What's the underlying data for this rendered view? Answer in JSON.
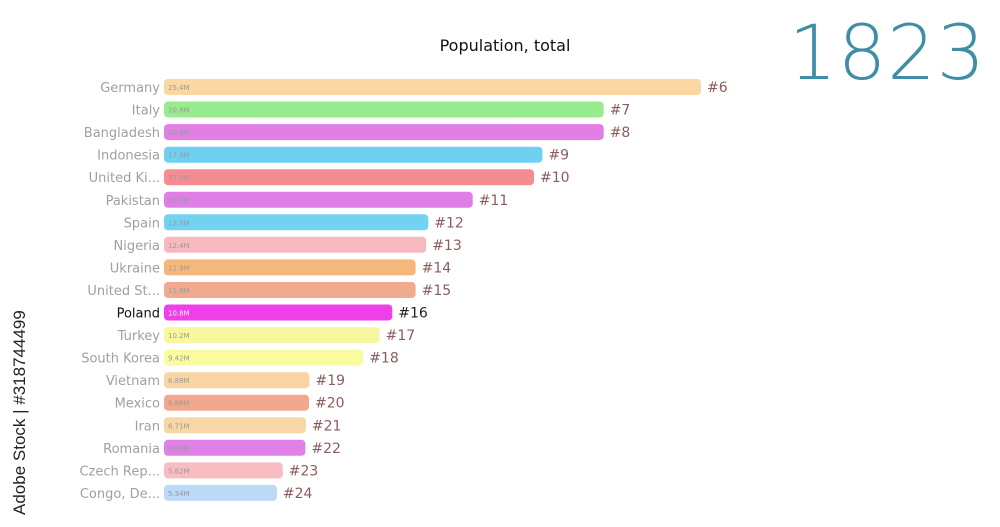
{
  "header": {
    "title": "Population, total",
    "year": "1823"
  },
  "watermark": "Adobe Stock | #318744499",
  "chart_data": {
    "type": "bar",
    "orientation": "horizontal",
    "title": "Population, total",
    "categories": [
      "Germany",
      "Italy",
      "Bangladesh",
      "Indonesia",
      "United Ki...",
      "Pakistan",
      "Spain",
      "Nigeria",
      "Ukraine",
      "United St...",
      "Poland",
      "Turkey",
      "South Korea",
      "Vietnam",
      "Mexico",
      "Iran",
      "Romania",
      "Czech Rep...",
      "Congo, De..."
    ],
    "values": [
      25.4,
      20.8,
      20.8,
      17.9,
      17.5,
      14.6,
      12.5,
      12.4,
      11.9,
      11.9,
      10.8,
      10.2,
      9.42,
      6.88,
      6.86,
      6.71,
      6.69,
      5.62,
      5.34
    ],
    "value_labels": [
      "25.4M",
      "20.8M",
      "20.8M",
      "17.9M",
      "17.5M",
      "14.6M",
      "12.5M",
      "12.4M",
      "11.9M",
      "11.9M",
      "10.8M",
      "10.2M",
      "9.42M",
      "6.88M",
      "6.86M",
      "6.71M",
      "6.69M",
      "5.62M",
      "5.34M"
    ],
    "ranks": [
      "#6",
      "#7",
      "#8",
      "#9",
      "#10",
      "#11",
      "#12",
      "#13",
      "#14",
      "#15",
      "#16",
      "#17",
      "#18",
      "#19",
      "#20",
      "#21",
      "#22",
      "#23",
      "#24"
    ],
    "highlight": "Poland",
    "colors": [
      "#fbd7a3",
      "#98ec8e",
      "#e17fe6",
      "#6fd0f2",
      "#f58c91",
      "#e07ee8",
      "#72d2f2",
      "#f6b9bf",
      "#f6b87a",
      "#f1a990",
      "#ef3fe9",
      "#f9f6a0",
      "#fbfba0",
      "#f9d4a5",
      "#f2a88e",
      "#f8d7a6",
      "#e180e6",
      "#f8bcc1",
      "#bcd9f7"
    ],
    "label_color": "#a0a0a0",
    "highlight_label_color": "#111111",
    "rank_color": "#8c5c5c",
    "highlight_rank_color": "#222222"
  }
}
